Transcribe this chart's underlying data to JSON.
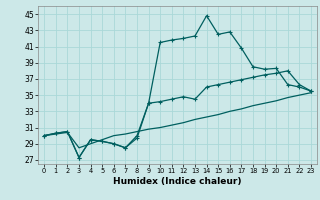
{
  "xlabel": "Humidex (Indice chaleur)",
  "bg_color": "#cce8e8",
  "grid_color": "#aad8d8",
  "line_color": "#005f5f",
  "xlim": [
    -0.5,
    23.5
  ],
  "ylim": [
    26.5,
    46
  ],
  "xticks": [
    0,
    1,
    2,
    3,
    4,
    5,
    6,
    7,
    8,
    9,
    10,
    11,
    12,
    13,
    14,
    15,
    16,
    17,
    18,
    19,
    20,
    21,
    22,
    23
  ],
  "yticks": [
    27,
    29,
    31,
    33,
    35,
    37,
    39,
    41,
    43,
    45
  ],
  "series1_y": [
    30.0,
    30.3,
    30.5,
    27.3,
    29.5,
    29.3,
    29.0,
    28.5,
    30.0,
    34.0,
    41.5,
    41.8,
    42.0,
    42.3,
    44.8,
    42.5,
    42.8,
    40.8,
    38.5,
    38.2,
    38.3,
    36.3,
    36.0,
    35.5
  ],
  "series2_y": [
    30.0,
    30.3,
    30.5,
    27.3,
    29.5,
    29.3,
    29.0,
    28.5,
    29.7,
    34.0,
    34.2,
    34.5,
    34.8,
    34.5,
    36.0,
    36.3,
    36.6,
    36.9,
    37.2,
    37.5,
    37.7,
    38.0,
    36.3,
    35.5
  ],
  "series3_y": [
    30.0,
    30.2,
    30.4,
    28.5,
    29.0,
    29.5,
    30.0,
    30.2,
    30.5,
    30.8,
    31.0,
    31.3,
    31.6,
    32.0,
    32.3,
    32.6,
    33.0,
    33.3,
    33.7,
    34.0,
    34.3,
    34.7,
    35.0,
    35.3
  ]
}
